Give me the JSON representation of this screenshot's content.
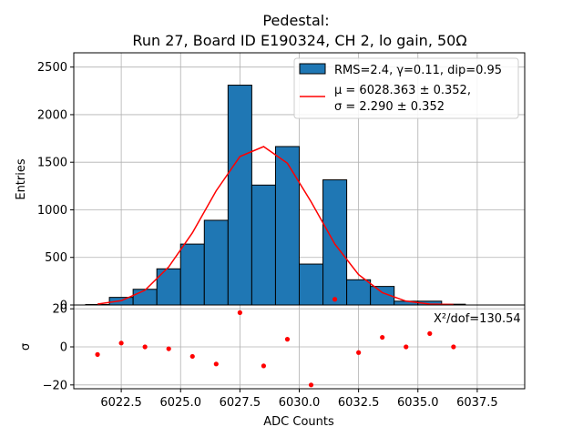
{
  "chart_data": {
    "type": "bar",
    "title_line1": "Pedestal:",
    "title_line2": "Run 27, Board ID E190324, CH 2, lo gain, 50Ω",
    "xlabel": "ADC Counts",
    "ylabel_top": "Entries",
    "ylabel_bottom": "σ",
    "xlim": [
      6020.5,
      6039.5
    ],
    "ylim_top": [
      0,
      2650
    ],
    "ylim_bottom": [
      -22,
      22
    ],
    "xticks": [
      6022.5,
      6025.0,
      6027.5,
      6030.0,
      6032.5,
      6035.0,
      6037.5
    ],
    "xtick_labels": [
      "6022.5",
      "6025.0",
      "6027.5",
      "6030.0",
      "6032.5",
      "6035.0",
      "6037.5"
    ],
    "yticks_top": [
      0,
      500,
      1000,
      1500,
      2000,
      2500
    ],
    "ytick_labels_top": [
      "0",
      "500",
      "1000",
      "1500",
      "2000",
      "2500"
    ],
    "yticks_bottom": [
      -20,
      0,
      20
    ],
    "ytick_labels_bottom": [
      "−20",
      "0",
      "20"
    ],
    "bin_edges": [
      6021,
      6022,
      6023,
      6024,
      6025,
      6026,
      6027,
      6028,
      6029,
      6030,
      6031,
      6032,
      6033,
      6034,
      6035,
      6036,
      6037
    ],
    "hist_values": [
      5,
      80,
      165,
      380,
      640,
      890,
      2310,
      1260,
      1665,
      430,
      1315,
      265,
      195,
      40,
      40,
      8
    ],
    "fit_x": [
      6021.5,
      6022.5,
      6023.5,
      6024.5,
      6025.5,
      6026.5,
      6027.5,
      6028.5,
      6029.5,
      6030.5,
      6031.5,
      6032.5,
      6033.5,
      6034.5,
      6035.5,
      6036.5
    ],
    "fit_y": [
      10,
      45,
      155,
      400,
      760,
      1200,
      1560,
      1665,
      1490,
      1085,
      640,
      320,
      130,
      40,
      10,
      5
    ],
    "residuals_x": [
      6021.5,
      6022.5,
      6023.5,
      6024.5,
      6025.5,
      6026.5,
      6027.5,
      6028.5,
      6029.5,
      6030.5,
      6031.5,
      6032.5,
      6033.5,
      6034.5,
      6035.5,
      6036.5
    ],
    "residuals_y": [
      -4,
      2,
      0,
      -1,
      -5,
      -9,
      18,
      -10,
      4,
      -20,
      25,
      -3,
      5,
      0,
      7,
      0
    ],
    "legend": {
      "hist_label": "RMS=2.4, γ=0.11, dip=0.95",
      "fit_label_line1": "μ = 6028.363 ± 0.352,",
      "fit_label_line2": "σ = 2.290 ± 0.352",
      "position": "top-right"
    },
    "chi2_text": "X²/dof=130.54",
    "colors": {
      "bar": "#1f77b4",
      "fit": "#ff0000",
      "residual": "#ff0000",
      "grid": "#b0b0b0"
    }
  }
}
